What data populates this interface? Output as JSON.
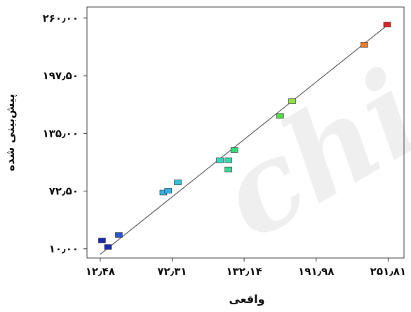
{
  "chart_data": {
    "type": "scatter",
    "xlabel": "واقعی",
    "ylabel": "پیش‌بینی شده",
    "xlim": [
      1.5,
      265
    ],
    "ylim": [
      0,
      272
    ],
    "x_ticks": [
      {
        "value": 12.48,
        "label": "۱۲٫۴۸"
      },
      {
        "value": 72.31,
        "label": "۷۲٫۳۱"
      },
      {
        "value": 132.14,
        "label": "۱۳۲٫۱۴"
      },
      {
        "value": 191.98,
        "label": "۱۹۱٫۹۸"
      },
      {
        "value": 251.81,
        "label": "۲۵۱٫۸۱"
      }
    ],
    "y_ticks": [
      {
        "value": 10.0,
        "label": "۱۰٫۰۰"
      },
      {
        "value": 72.5,
        "label": "۷۲٫۵۰"
      },
      {
        "value": 135.0,
        "label": "۱۳۵٫۰۰"
      },
      {
        "value": 197.5,
        "label": "۱۹۷٫۵۰"
      },
      {
        "value": 260.0,
        "label": "۲۶۰٫۰۰"
      }
    ],
    "fit_line": {
      "x": [
        12.48,
        251.81
      ],
      "y": [
        4.0,
        253.0
      ],
      "color": "#666666"
    },
    "points": [
      {
        "x": 14,
        "y": 19,
        "color": "#1a2bb0"
      },
      {
        "x": 19,
        "y": 12,
        "color": "#1a2bb0"
      },
      {
        "x": 28,
        "y": 25,
        "color": "#2a55d8"
      },
      {
        "x": 65,
        "y": 71,
        "color": "#35b0e6"
      },
      {
        "x": 69,
        "y": 73,
        "color": "#35b0e6"
      },
      {
        "x": 77,
        "y": 82,
        "color": "#35c0d8"
      },
      {
        "x": 112,
        "y": 106,
        "color": "#35d8c0"
      },
      {
        "x": 119,
        "y": 106,
        "color": "#35d8a8"
      },
      {
        "x": 119,
        "y": 96,
        "color": "#35d890"
      },
      {
        "x": 124,
        "y": 117,
        "color": "#35d878"
      },
      {
        "x": 162,
        "y": 154,
        "color": "#55d84a"
      },
      {
        "x": 172,
        "y": 170,
        "color": "#8ee040"
      },
      {
        "x": 232,
        "y": 231,
        "color": "#e87a2a"
      },
      {
        "x": 251,
        "y": 253,
        "color": "#dd2222"
      }
    ],
    "grid": false,
    "legend": "none"
  },
  "watermark": {
    "text": "chi"
  }
}
